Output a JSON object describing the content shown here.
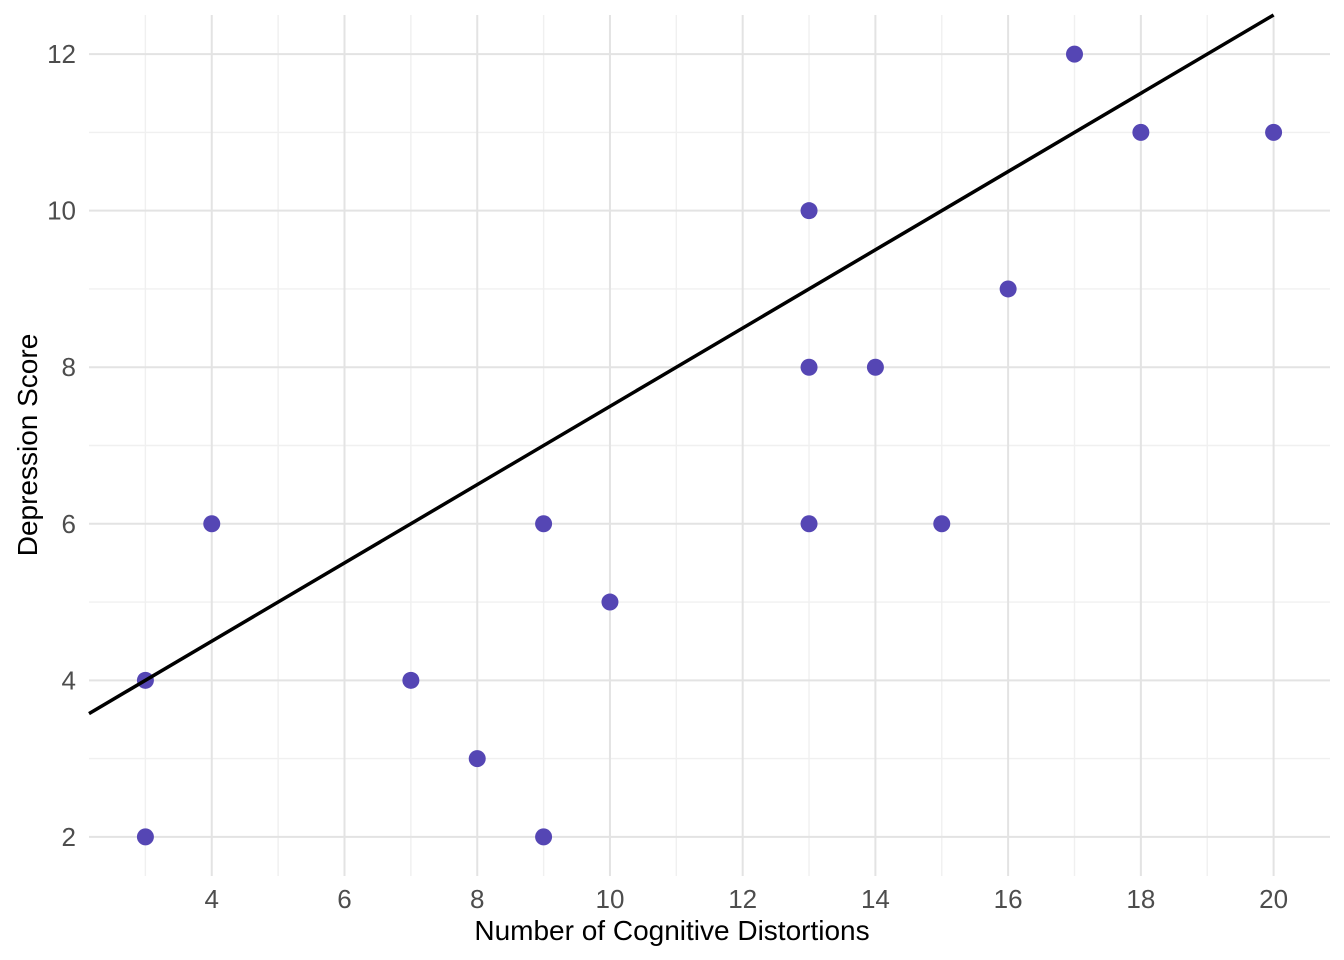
{
  "chart_data": {
    "type": "scatter",
    "title": "",
    "xlabel": "Number of Cognitive Distortions",
    "ylabel": "Depression Score",
    "x_ticks": [
      4,
      6,
      8,
      10,
      12,
      14,
      16,
      18,
      20
    ],
    "x_minor_ticks": [
      3,
      5,
      7,
      9,
      11,
      13,
      15,
      17,
      19
    ],
    "y_ticks": [
      2,
      4,
      6,
      8,
      10,
      12
    ],
    "y_minor_ticks": [
      3,
      5,
      7,
      9,
      11
    ],
    "xlim": [
      2.15,
      20.85
    ],
    "ylim": [
      1.5,
      12.5
    ],
    "grid": "major and minor, light gray on white, no axis lines, no tick marks",
    "legend_position": "none",
    "points": [
      {
        "x": 3,
        "y": 2
      },
      {
        "x": 3,
        "y": 4
      },
      {
        "x": 4,
        "y": 6
      },
      {
        "x": 7,
        "y": 4
      },
      {
        "x": 8,
        "y": 3
      },
      {
        "x": 9,
        "y": 2
      },
      {
        "x": 9,
        "y": 6
      },
      {
        "x": 10,
        "y": 5
      },
      {
        "x": 13,
        "y": 6
      },
      {
        "x": 13,
        "y": 8
      },
      {
        "x": 13,
        "y": 10
      },
      {
        "x": 14,
        "y": 8
      },
      {
        "x": 15,
        "y": 6
      },
      {
        "x": 16,
        "y": 9
      },
      {
        "x": 17,
        "y": 12
      },
      {
        "x": 18,
        "y": 11
      },
      {
        "x": 20,
        "y": 11
      }
    ],
    "regression_line": {
      "slope": 0.5,
      "intercept": 2.5,
      "x1": 2.15,
      "y1": 3.575,
      "x2": 20.0,
      "y2": 12.5
    },
    "colors": {
      "point": "#5546B4",
      "line": "#000000",
      "grid_major": "#E3E3E3",
      "grid_minor": "#F0F0F0",
      "tick_label": "#4D4D4D",
      "axis_title": "#000000",
      "background": "#FFFFFF"
    }
  }
}
